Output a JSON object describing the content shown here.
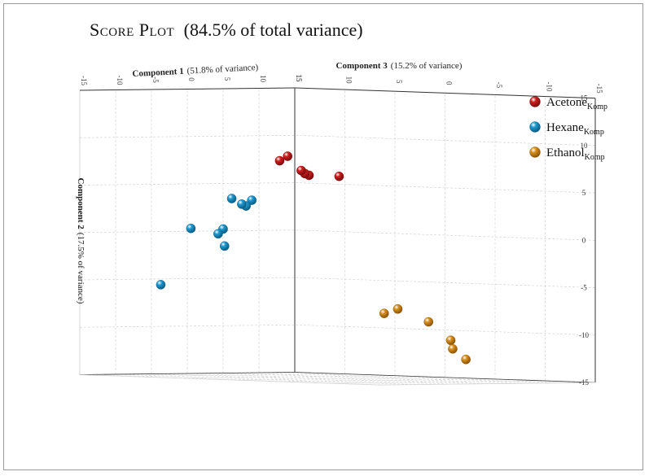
{
  "chart_data": {
    "type": "scatter",
    "subtype": "3d",
    "title_main": "Score Plot",
    "title_rest": "(84.5% of total variance)",
    "axes": {
      "x": {
        "label_bold": "Component 1",
        "label_note": "(51.8% of variance)",
        "range": [
          -15,
          15
        ],
        "ticks": [
          -15,
          -10,
          -5,
          0,
          5,
          10,
          15
        ],
        "tick_labels": [
          "-15",
          "-10",
          "-5",
          "0",
          "5",
          "10",
          "15"
        ]
      },
      "y": {
        "label_bold": "Component 2",
        "label_note": "(17.5% of variance)",
        "range": [
          -15,
          15
        ],
        "ticks": [
          -15,
          -10,
          -5,
          0,
          5,
          10,
          15
        ],
        "tick_labels": [
          "-15",
          "-10",
          "-5",
          "0",
          "5",
          "10",
          "15"
        ]
      },
      "z": {
        "label_bold": "Component 3",
        "label_note": "(15.2% of variance)",
        "range": [
          -15,
          15
        ],
        "ticks": [
          -15,
          -10,
          -5,
          0,
          5,
          10,
          15
        ],
        "tick_labels": [
          "-15",
          "-10",
          "-5",
          "0",
          "5",
          "10",
          "15"
        ]
      }
    },
    "grid": true,
    "legend_position": "right",
    "series": [
      {
        "name": "Acetone",
        "sub": "Komp",
        "color": "#cc1f1f",
        "dark": "#7a0c0c",
        "points": [
          {
            "x": 7,
            "y": 6,
            "z": 10
          },
          {
            "x": 10,
            "y": 6,
            "z": 10
          },
          {
            "x": 11.5,
            "y": 7.5,
            "z": 8
          },
          {
            "x": 14,
            "y": 6,
            "z": 15
          },
          {
            "x": 14.5,
            "y": 6.3,
            "z": 15.2
          },
          {
            "x": 15,
            "y": 7.8,
            "z": 14
          }
        ]
      },
      {
        "name": "Hexane",
        "sub": "Komp",
        "color": "#1f9ad0",
        "dark": "#0b5c82",
        "points": [
          {
            "x": 15,
            "y": 3.2,
            "z": 9
          },
          {
            "x": 15,
            "y": 2.6,
            "z": 8.2
          },
          {
            "x": 15,
            "y": 2.8,
            "z": 7.6
          },
          {
            "x": 15,
            "y": 3.4,
            "z": 6.2
          },
          {
            "x": 15,
            "y": 0.2,
            "z": 5
          },
          {
            "x": 15,
            "y": -0.3,
            "z": 4.3
          },
          {
            "x": 15,
            "y": -1.6,
            "z": 5.2
          },
          {
            "x": 15,
            "y": 0.3,
            "z": 0.5
          },
          {
            "x": 15,
            "y": -5.6,
            "z": -3.7
          }
        ]
      },
      {
        "name": "Ethanol",
        "sub": "Komp",
        "color": "#d9901e",
        "dark": "#8a5508",
        "points": [
          {
            "x": 1.5,
            "y": -7.8,
            "z": 10.5
          },
          {
            "x": 2.5,
            "y": -8.3,
            "z": 10
          },
          {
            "x": -0.5,
            "y": -9.1,
            "z": 12
          },
          {
            "x": -2,
            "y": -11,
            "z": 13
          },
          {
            "x": -2.2,
            "y": -11.9,
            "z": 13
          },
          {
            "x": -2.8,
            "y": -13,
            "z": 14
          }
        ]
      }
    ]
  }
}
